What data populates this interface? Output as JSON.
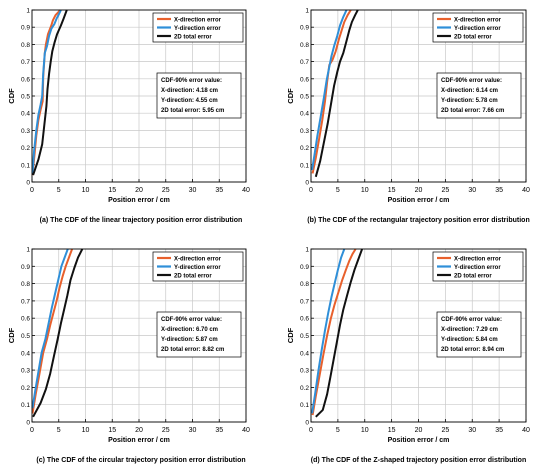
{
  "chart_data": [
    {
      "type": "line",
      "title": "(a) The CDF of the linear trajectory position error distribution",
      "xlabel": "Position error / cm",
      "ylabel": "CDF",
      "xlim": [
        0,
        40
      ],
      "ylim": [
        0,
        1
      ],
      "x_ticks": [
        "0",
        "5",
        "10",
        "15",
        "20",
        "25",
        "30",
        "35",
        "40"
      ],
      "y_ticks": [
        "0",
        "0.1",
        "0.2",
        "0.3",
        "0.4",
        "0.5",
        "0.6",
        "0.7",
        "0.8",
        "0.9",
        "1"
      ],
      "grid": true,
      "legend_position": "top-right",
      "series": [
        {
          "name": "X-direction error",
          "color": "#e8602c",
          "x": [
            0.1,
            0.5,
            0.8,
            1.2,
            1.6,
            2.0,
            2.1,
            2.4,
            2.6,
            3.0,
            3.6,
            3.9,
            4.4,
            5.0,
            5.3
          ],
          "y": [
            0.04,
            0.17,
            0.27,
            0.36,
            0.42,
            0.47,
            0.61,
            0.75,
            0.8,
            0.86,
            0.91,
            0.94,
            0.97,
            0.99,
            1.0
          ]
        },
        {
          "name": "Y-direction error",
          "color": "#2f8fd8",
          "x": [
            0.1,
            0.4,
            0.8,
            1.2,
            1.6,
            1.9,
            2.1,
            2.4,
            2.8,
            3.2,
            3.6,
            4.2,
            4.6,
            5.1,
            5.4
          ],
          "y": [
            0.05,
            0.18,
            0.3,
            0.39,
            0.45,
            0.5,
            0.63,
            0.75,
            0.79,
            0.85,
            0.89,
            0.92,
            0.95,
            0.98,
            1.0
          ]
        },
        {
          "name": "2D total error",
          "color": "#111111",
          "x": [
            0.2,
            1.2,
            1.9,
            2.3,
            2.7,
            2.9,
            3.2,
            3.5,
            3.8,
            4.2,
            4.7,
            5.4,
            5.9,
            6.5
          ],
          "y": [
            0.04,
            0.13,
            0.22,
            0.33,
            0.44,
            0.54,
            0.63,
            0.7,
            0.76,
            0.81,
            0.86,
            0.91,
            0.95,
            1.0
          ]
        }
      ],
      "annotation": [
        "CDF-90% error value:",
        "X-direction: 4.18 cm",
        "Y-direction: 4.55 cm",
        "2D total error: 5.95 cm"
      ]
    },
    {
      "type": "line",
      "title": "(b) The CDF of the rectangular trajectory position error distribution",
      "xlabel": "Position error / cm",
      "ylabel": "CDF",
      "xlim": [
        0,
        40
      ],
      "ylim": [
        0,
        1
      ],
      "x_ticks": [
        "0",
        "5",
        "10",
        "15",
        "20",
        "25",
        "30",
        "35",
        "40"
      ],
      "y_ticks": [
        "0",
        "0.1",
        "0.2",
        "0.3",
        "0.4",
        "0.5",
        "0.6",
        "0.7",
        "0.8",
        "0.9",
        "1"
      ],
      "grid": true,
      "legend_position": "top-right",
      "series": [
        {
          "name": "X-direction error",
          "color": "#e8602c",
          "x": [
            0.3,
            0.9,
            1.5,
            2.1,
            2.6,
            3.0,
            3.4,
            4.0,
            4.6,
            5.2,
            5.7,
            6.2,
            6.8,
            7.4
          ],
          "y": [
            0.05,
            0.14,
            0.25,
            0.36,
            0.47,
            0.58,
            0.68,
            0.71,
            0.76,
            0.83,
            0.88,
            0.93,
            0.97,
            1.0
          ]
        },
        {
          "name": "Y-direction error",
          "color": "#2f8fd8",
          "x": [
            0.2,
            0.7,
            1.2,
            1.8,
            2.4,
            2.9,
            3.4,
            3.8,
            4.3,
            4.9,
            5.4,
            6.0,
            6.6
          ],
          "y": [
            0.07,
            0.17,
            0.27,
            0.38,
            0.49,
            0.59,
            0.67,
            0.73,
            0.79,
            0.85,
            0.91,
            0.96,
            1.0
          ]
        },
        {
          "name": "2D total error",
          "color": "#111111",
          "x": [
            0.9,
            1.7,
            2.4,
            3.1,
            3.7,
            4.3,
            4.9,
            5.4,
            6.0,
            6.6,
            7.1,
            7.6,
            8.2,
            8.7
          ],
          "y": [
            0.03,
            0.12,
            0.23,
            0.34,
            0.45,
            0.56,
            0.64,
            0.7,
            0.75,
            0.82,
            0.88,
            0.93,
            0.97,
            1.0
          ]
        }
      ],
      "annotation": [
        "CDF-90% error value:",
        "X-direction: 6.14 cm",
        "Y-direction: 5.78 cm",
        "2D total error: 7.66 cm"
      ]
    },
    {
      "type": "line",
      "title": "(c) The CDF of the circular trajectory position error distribution",
      "xlabel": "Position error / cm",
      "ylabel": "CDF",
      "xlim": [
        0,
        40
      ],
      "ylim": [
        0,
        1
      ],
      "x_ticks": [
        "0",
        "5",
        "10",
        "15",
        "20",
        "25",
        "30",
        "35",
        "40"
      ],
      "y_ticks": [
        "0",
        "0.1",
        "0.2",
        "0.3",
        "0.4",
        "0.5",
        "0.6",
        "0.7",
        "0.8",
        "0.9",
        "1"
      ],
      "grid": true,
      "legend_position": "top-right",
      "series": [
        {
          "name": "X-direction error",
          "color": "#e8602c",
          "x": [
            0.1,
            0.7,
            1.4,
            2.1,
            2.8,
            3.4,
            4.0,
            4.6,
            5.1,
            5.7,
            6.3,
            6.9,
            7.5
          ],
          "y": [
            0.05,
            0.16,
            0.28,
            0.4,
            0.48,
            0.56,
            0.63,
            0.7,
            0.77,
            0.84,
            0.9,
            0.95,
            1.0
          ]
        },
        {
          "name": "Y-direction error",
          "color": "#2f8fd8",
          "x": [
            0.1,
            0.6,
            1.2,
            1.8,
            2.5,
            3.1,
            3.7,
            4.3,
            4.9,
            5.5,
            6.1,
            6.7
          ],
          "y": [
            0.08,
            0.18,
            0.29,
            0.4,
            0.48,
            0.57,
            0.66,
            0.74,
            0.82,
            0.9,
            0.95,
            1.0
          ]
        },
        {
          "name": "2D total error",
          "color": "#111111",
          "x": [
            0.2,
            1.6,
            2.6,
            3.4,
            4.1,
            4.8,
            5.4,
            6.0,
            6.6,
            7.2,
            7.9,
            8.6,
            9.4
          ],
          "y": [
            0.03,
            0.11,
            0.19,
            0.28,
            0.38,
            0.48,
            0.57,
            0.65,
            0.73,
            0.82,
            0.89,
            0.95,
            1.0
          ]
        }
      ],
      "annotation": [
        "CDF-90% error value:",
        "X-direction: 6.70 cm",
        "Y-direction: 5.87 cm",
        "2D total error: 8.82 cm"
      ]
    },
    {
      "type": "line",
      "title": "(d) The CDF of the Z-shaped trajectory position error distribution",
      "xlabel": "Position error / cm",
      "ylabel": "CDF",
      "xlim": [
        0,
        40
      ],
      "ylim": [
        0,
        1
      ],
      "x_ticks": [
        "0",
        "5",
        "10",
        "15",
        "20",
        "25",
        "30",
        "35",
        "40"
      ],
      "y_ticks": [
        "0",
        "0.1",
        "0.2",
        "0.3",
        "0.4",
        "0.5",
        "0.6",
        "0.7",
        "0.8",
        "0.9",
        "1"
      ],
      "grid": true,
      "legend_position": "top-right",
      "series": [
        {
          "name": "X-direction error",
          "color": "#e8602c",
          "x": [
            0.3,
            0.9,
            1.6,
            2.3,
            3.0,
            3.7,
            4.4,
            5.1,
            5.8,
            6.5,
            7.1,
            7.7,
            8.3
          ],
          "y": [
            0.04,
            0.15,
            0.27,
            0.39,
            0.5,
            0.6,
            0.68,
            0.75,
            0.82,
            0.88,
            0.93,
            0.97,
            1.0
          ]
        },
        {
          "name": "Y-direction error",
          "color": "#2f8fd8",
          "x": [
            0.2,
            0.8,
            1.4,
            2.0,
            2.6,
            3.2,
            3.8,
            4.4,
            5.0,
            5.6,
            6.2
          ],
          "y": [
            0.05,
            0.17,
            0.3,
            0.42,
            0.53,
            0.63,
            0.72,
            0.8,
            0.88,
            0.95,
            1.0
          ]
        },
        {
          "name": "2D total error",
          "color": "#111111",
          "x": [
            0.9,
            2.2,
            3.0,
            3.6,
            4.2,
            4.8,
            5.4,
            6.0,
            6.7,
            7.4,
            8.1,
            8.8,
            9.5
          ],
          "y": [
            0.03,
            0.07,
            0.16,
            0.26,
            0.36,
            0.46,
            0.56,
            0.65,
            0.73,
            0.81,
            0.88,
            0.94,
            1.0
          ]
        }
      ],
      "annotation": [
        "CDF-90% error value:",
        "X-direction: 7.29 cm",
        "Y-direction: 5.84 cm",
        "2D total error: 8.94 cm"
      ]
    }
  ]
}
